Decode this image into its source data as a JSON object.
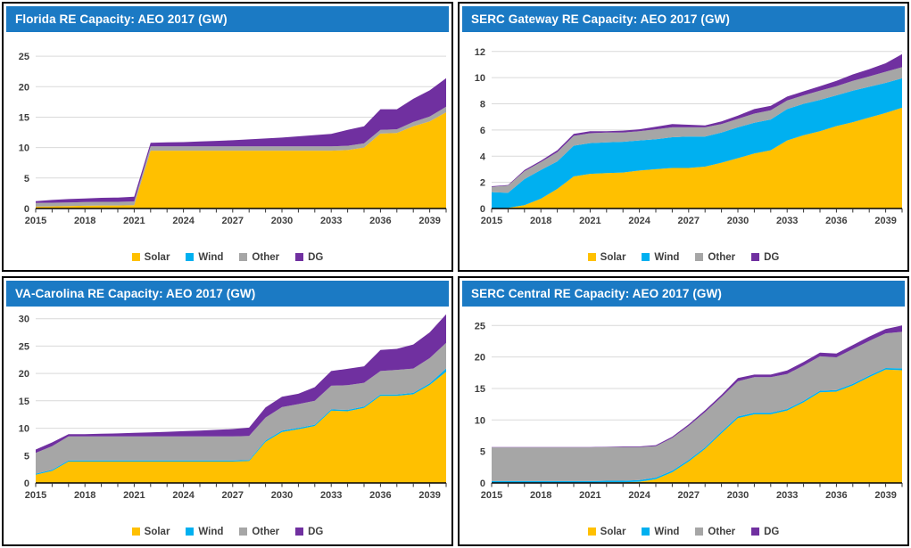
{
  "colors": {
    "title_bar": "#1b7ac4",
    "solar": "#FFC000",
    "wind": "#00B0F0",
    "other": "#A6A6A6",
    "dg": "#7030A0",
    "gridline": "#D9D9D9",
    "axis_line": "#000000",
    "axis_text": "#404040",
    "panel_border": "#000000",
    "title_text": "#ffffff"
  },
  "legend": {
    "items": [
      {
        "label": "Solar",
        "color_key": "solar"
      },
      {
        "label": "Wind",
        "color_key": "wind"
      },
      {
        "label": "Other",
        "color_key": "other"
      },
      {
        "label": "DG",
        "color_key": "dg"
      }
    ]
  },
  "chart_data": [
    {
      "type": "area",
      "stacked": true,
      "title": "Florida RE Capacity: AEO 2017 (GW)",
      "xlabel": "",
      "ylabel": "",
      "axis_max": 27.5,
      "y_ticks": [
        0,
        5,
        10,
        15,
        20,
        25
      ],
      "x_tick_labels": [
        2015,
        2018,
        2021,
        2024,
        2027,
        2030,
        2033,
        2036,
        2039
      ],
      "years": [
        2015,
        2016,
        2017,
        2018,
        2019,
        2020,
        2021,
        2022,
        2023,
        2024,
        2025,
        2026,
        2027,
        2028,
        2029,
        2030,
        2031,
        2032,
        2033,
        2034,
        2035,
        2036,
        2037,
        2038,
        2039,
        2040
      ],
      "series": [
        {
          "name": "Solar",
          "color": "#FFC000",
          "values": [
            0.3,
            0.35,
            0.4,
            0.45,
            0.5,
            0.5,
            0.55,
            9.5,
            9.5,
            9.5,
            9.5,
            9.5,
            9.5,
            9.5,
            9.5,
            9.5,
            9.5,
            9.5,
            9.5,
            9.6,
            10.0,
            12.3,
            12.4,
            13.5,
            14.3,
            15.8
          ]
        },
        {
          "name": "Wind",
          "color": "#00B0F0",
          "values": [
            0,
            0,
            0,
            0,
            0,
            0,
            0,
            0,
            0,
            0,
            0,
            0,
            0,
            0,
            0,
            0,
            0,
            0,
            0,
            0,
            0,
            0,
            0,
            0,
            0,
            0
          ]
        },
        {
          "name": "Other",
          "color": "#A6A6A6",
          "values": [
            0.6,
            0.6,
            0.6,
            0.6,
            0.6,
            0.6,
            0.6,
            0.7,
            0.7,
            0.7,
            0.7,
            0.7,
            0.7,
            0.7,
            0.7,
            0.7,
            0.7,
            0.7,
            0.7,
            0.7,
            0.7,
            0.6,
            0.6,
            0.7,
            0.8,
            0.9
          ]
        },
        {
          "name": "DG",
          "color": "#7030A0",
          "values": [
            0.3,
            0.45,
            0.55,
            0.6,
            0.65,
            0.7,
            0.8,
            0.6,
            0.65,
            0.7,
            0.8,
            0.9,
            1.0,
            1.15,
            1.3,
            1.45,
            1.65,
            1.85,
            2.05,
            2.6,
            2.8,
            3.4,
            3.3,
            3.8,
            4.3,
            4.7
          ]
        }
      ]
    },
    {
      "type": "area",
      "stacked": true,
      "title": "SERC Gateway RE Capacity: AEO 2017 (GW)",
      "xlabel": "",
      "ylabel": "",
      "axis_max": 12.8,
      "y_ticks": [
        0,
        2,
        4,
        6,
        8,
        10,
        12
      ],
      "x_tick_labels": [
        2015,
        2018,
        2021,
        2024,
        2027,
        2030,
        2033,
        2036,
        2039
      ],
      "years": [
        2015,
        2016,
        2017,
        2018,
        2019,
        2020,
        2021,
        2022,
        2023,
        2024,
        2025,
        2026,
        2027,
        2028,
        2029,
        2030,
        2031,
        2032,
        2033,
        2034,
        2035,
        2036,
        2037,
        2038,
        2039,
        2040
      ],
      "series": [
        {
          "name": "Solar",
          "color": "#FFC000",
          "values": [
            0.0,
            0.05,
            0.25,
            0.75,
            1.5,
            2.45,
            2.65,
            2.7,
            2.75,
            2.9,
            3.0,
            3.1,
            3.1,
            3.2,
            3.5,
            3.85,
            4.2,
            4.45,
            5.2,
            5.6,
            5.9,
            6.3,
            6.6,
            6.95,
            7.3,
            7.7
          ]
        },
        {
          "name": "Wind",
          "color": "#00B0F0",
          "values": [
            1.25,
            1.15,
            2.0,
            2.2,
            2.1,
            2.35,
            2.35,
            2.35,
            2.35,
            2.3,
            2.3,
            2.35,
            2.4,
            2.3,
            2.3,
            2.35,
            2.35,
            2.35,
            2.4,
            2.4,
            2.4,
            2.35,
            2.4,
            2.35,
            2.3,
            2.25
          ]
        },
        {
          "name": "Other",
          "color": "#A6A6A6",
          "values": [
            0.4,
            0.55,
            0.6,
            0.6,
            0.7,
            0.75,
            0.75,
            0.75,
            0.7,
            0.7,
            0.75,
            0.75,
            0.7,
            0.7,
            0.65,
            0.65,
            0.7,
            0.7,
            0.65,
            0.65,
            0.7,
            0.7,
            0.75,
            0.8,
            0.85,
            0.85
          ]
        },
        {
          "name": "DG",
          "color": "#7030A0",
          "values": [
            0.05,
            0.05,
            0.1,
            0.1,
            0.15,
            0.15,
            0.15,
            0.1,
            0.15,
            0.15,
            0.2,
            0.25,
            0.2,
            0.15,
            0.2,
            0.25,
            0.35,
            0.35,
            0.3,
            0.3,
            0.35,
            0.4,
            0.5,
            0.55,
            0.65,
            1.0
          ]
        }
      ]
    },
    {
      "type": "area",
      "stacked": true,
      "title": "VA-Carolina RE Capacity: AEO 2017 (GW)",
      "xlabel": "",
      "ylabel": "",
      "axis_max": 30.6,
      "y_ticks": [
        0,
        5,
        10,
        15,
        20,
        25,
        30
      ],
      "x_tick_labels": [
        2015,
        2018,
        2021,
        2024,
        2027,
        2030,
        2033,
        2036,
        2039
      ],
      "years": [
        2015,
        2016,
        2017,
        2018,
        2019,
        2020,
        2021,
        2022,
        2023,
        2024,
        2025,
        2026,
        2027,
        2028,
        2029,
        2030,
        2031,
        2032,
        2033,
        2034,
        2035,
        2036,
        2037,
        2038,
        2039,
        2040
      ],
      "series": [
        {
          "name": "Solar",
          "color": "#FFC000",
          "values": [
            1.5,
            2.2,
            3.9,
            3.9,
            3.9,
            3.9,
            3.9,
            3.9,
            3.9,
            3.9,
            3.9,
            3.9,
            3.9,
            4.0,
            7.5,
            9.3,
            9.8,
            10.4,
            13.2,
            13.1,
            13.7,
            15.9,
            15.9,
            16.2,
            17.9,
            20.3
          ]
        },
        {
          "name": "Wind",
          "color": "#00B0F0",
          "values": [
            0.2,
            0.2,
            0.2,
            0.2,
            0.2,
            0.2,
            0.2,
            0.2,
            0.2,
            0.2,
            0.2,
            0.2,
            0.2,
            0.2,
            0.25,
            0.25,
            0.25,
            0.25,
            0.25,
            0.25,
            0.25,
            0.25,
            0.25,
            0.25,
            0.3,
            0.6
          ]
        },
        {
          "name": "Other",
          "color": "#A6A6A6",
          "values": [
            3.8,
            4.3,
            4.4,
            4.4,
            4.4,
            4.4,
            4.4,
            4.4,
            4.4,
            4.4,
            4.4,
            4.4,
            4.4,
            4.4,
            4.2,
            4.3,
            4.35,
            4.35,
            4.3,
            4.5,
            4.35,
            4.3,
            4.5,
            4.45,
            4.6,
            4.7
          ]
        },
        {
          "name": "DG",
          "color": "#7030A0",
          "values": [
            0.6,
            0.7,
            0.4,
            0.4,
            0.5,
            0.55,
            0.65,
            0.75,
            0.85,
            0.95,
            1.05,
            1.2,
            1.35,
            1.5,
            1.85,
            1.9,
            1.9,
            2.5,
            2.7,
            3.0,
            3.0,
            3.85,
            3.85,
            4.4,
            4.7,
            5.2
          ]
        }
      ]
    },
    {
      "type": "area",
      "stacked": true,
      "title": "SERC Central RE Capacity: AEO 2017 (GW)",
      "xlabel": "",
      "ylabel": "",
      "axis_max": 26.6,
      "y_ticks": [
        0,
        5,
        10,
        15,
        20,
        25
      ],
      "x_tick_labels": [
        2015,
        2018,
        2021,
        2024,
        2027,
        2030,
        2033,
        2036,
        2039
      ],
      "years": [
        2015,
        2016,
        2017,
        2018,
        2019,
        2020,
        2021,
        2022,
        2023,
        2024,
        2025,
        2026,
        2027,
        2028,
        2029,
        2030,
        2031,
        2032,
        2033,
        2034,
        2035,
        2036,
        2037,
        2038,
        2039,
        2040
      ],
      "series": [
        {
          "name": "Solar",
          "color": "#FFC000",
          "values": [
            0.05,
            0.05,
            0.05,
            0.05,
            0.05,
            0.05,
            0.05,
            0.1,
            0.1,
            0.2,
            0.6,
            1.7,
            3.4,
            5.4,
            7.9,
            10.3,
            10.9,
            10.9,
            11.5,
            12.8,
            14.4,
            14.5,
            15.5,
            16.8,
            18.0,
            17.9
          ]
        },
        {
          "name": "Wind",
          "color": "#00B0F0",
          "values": [
            0.25,
            0.25,
            0.25,
            0.25,
            0.25,
            0.25,
            0.25,
            0.25,
            0.25,
            0.25,
            0.25,
            0.25,
            0.25,
            0.25,
            0.25,
            0.25,
            0.25,
            0.25,
            0.25,
            0.25,
            0.25,
            0.25,
            0.25,
            0.25,
            0.25,
            0.3
          ]
        },
        {
          "name": "Other",
          "color": "#A6A6A6",
          "values": [
            5.35,
            5.35,
            5.35,
            5.35,
            5.35,
            5.35,
            5.35,
            5.35,
            5.35,
            5.25,
            5.0,
            5.2,
            5.4,
            5.6,
            5.5,
            5.6,
            5.65,
            5.65,
            5.55,
            5.6,
            5.45,
            5.2,
            5.5,
            5.5,
            5.5,
            5.8
          ]
        },
        {
          "name": "DG",
          "color": "#7030A0",
          "values": [
            0.05,
            0.05,
            0.05,
            0.05,
            0.05,
            0.05,
            0.05,
            0.05,
            0.1,
            0.1,
            0.15,
            0.2,
            0.25,
            0.3,
            0.35,
            0.5,
            0.4,
            0.4,
            0.55,
            0.55,
            0.6,
            0.6,
            0.65,
            0.7,
            0.7,
            1.0
          ]
        }
      ]
    }
  ]
}
